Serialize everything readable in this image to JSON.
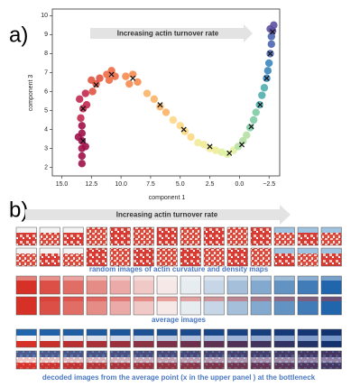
{
  "panel_labels": [
    "a)",
    "b)"
  ],
  "chart_data": {
    "type": "scatter",
    "annotation": "Increasing actin turnover rate",
    "xlabel": "component 1",
    "ylabel": "component 3",
    "xlim": [
      15.8,
      -3.4
    ],
    "ylim": [
      1.55,
      10.35
    ],
    "xticks": [
      {
        "value": 15,
        "label": "15.0"
      },
      12.5,
      {
        "value": 10,
        "label": "10.0"
      },
      7.5,
      {
        "value": 5,
        "label": "5.0"
      },
      2.5,
      {
        "value": 0,
        "label": "0.0"
      },
      {
        "value": -2.5,
        "label": "−2.5"
      }
    ],
    "yticks": [
      2,
      3,
      4,
      5,
      6,
      7,
      8,
      9,
      10
    ],
    "points": {
      "x": [
        13.3,
        13.3,
        13.3,
        13.3,
        13.3,
        13.3,
        13.0,
        13.6,
        13.4,
        13.2,
        13.5,
        13.0,
        12.9,
        12.4,
        12.1,
        11.8,
        12.5,
        11.2,
        10.8,
        10.5,
        11.0,
        9.6,
        9.0,
        8.6,
        9.3,
        7.8,
        7.2,
        6.7,
        6.2,
        5.6,
        5.0,
        4.6,
        4.1,
        3.5,
        3.0,
        2.5,
        2.0,
        1.5,
        1.0,
        0.5,
        0.1,
        -0.3,
        -0.6,
        -0.9,
        -1.2,
        -1.4,
        -1.7,
        -1.9,
        -2.1,
        -2.3,
        -2.4,
        -2.5,
        -2.6,
        -2.7,
        -2.7,
        -2.8,
        -2.9,
        -2.6
      ],
      "y": [
        2.2,
        2.6,
        3.0,
        3.4,
        3.8,
        4.2,
        3.1,
        3.6,
        4.6,
        5.1,
        5.6,
        5.9,
        5.3,
        6.0,
        6.4,
        6.7,
        6.6,
        6.9,
        7.1,
        6.8,
        6.6,
        6.8,
        6.9,
        6.5,
        6.4,
        5.9,
        5.6,
        5.2,
        4.9,
        4.5,
        4.2,
        3.9,
        3.6,
        3.3,
        3.2,
        3.0,
        2.9,
        2.8,
        2.7,
        2.9,
        3.1,
        3.4,
        3.7,
        4.1,
        4.5,
        4.9,
        5.3,
        5.8,
        6.2,
        6.7,
        7.1,
        7.5,
        8.0,
        8.5,
        8.9,
        9.2,
        9.5,
        9.3
      ],
      "colors": [
        "#a0114a",
        "#a0114a",
        "#a0114a",
        "#a0114a",
        "#a0114a",
        "#a0114a",
        "#a0114a",
        "#a0114a",
        "#c2294f",
        "#c2294f",
        "#c2294f",
        "#c2294f",
        "#c2294f",
        "#e0533f",
        "#e0533f",
        "#e0533f",
        "#e0533f",
        "#ee6b44",
        "#ee6b44",
        "#ee6b44",
        "#ee6b44",
        "#f68c4e",
        "#f68c4e",
        "#f68c4e",
        "#f68c4e",
        "#fbb465",
        "#fbb465",
        "#fbb465",
        "#fbb465",
        "#fdd783",
        "#fdd783",
        "#fdd783",
        "#fdd783",
        "#f0eb97",
        "#f0eb97",
        "#f0eb97",
        "#f0eb97",
        "#dff1a0",
        "#dff1a0",
        "#dff1a0",
        "#b4e0a2",
        "#b4e0a2",
        "#b4e0a2",
        "#7fcca4",
        "#7fcca4",
        "#7fcca4",
        "#52aeae",
        "#52aeae",
        "#52aeae",
        "#3a86bc",
        "#3a86bc",
        "#3a86bc",
        "#4a66b0",
        "#4a66b0",
        "#4a66b0",
        "#5e4fa2",
        "#5e4fa2",
        "#5e4fa2"
      ]
    },
    "centers": {
      "x": [
        13.2,
        13.2,
        12.1,
        10.8,
        9.0,
        6.7,
        4.7,
        2.5,
        0.85,
        -0.2,
        -1.0,
        -1.75,
        -2.3,
        -2.6,
        -2.8
      ],
      "y": [
        3.4,
        5.1,
        6.35,
        6.9,
        6.7,
        5.3,
        4.0,
        3.1,
        2.75,
        3.2,
        4.15,
        5.3,
        6.7,
        8.0,
        9.15
      ],
      "color": "#111111"
    }
  },
  "panel_b": {
    "arrow_text": "Increasing actin turnover rate",
    "captions": [
      "random images  of actin curvature and density maps",
      "average images",
      "decoded images from the average point (x in the upper panel ) at the bottleneck"
    ]
  }
}
